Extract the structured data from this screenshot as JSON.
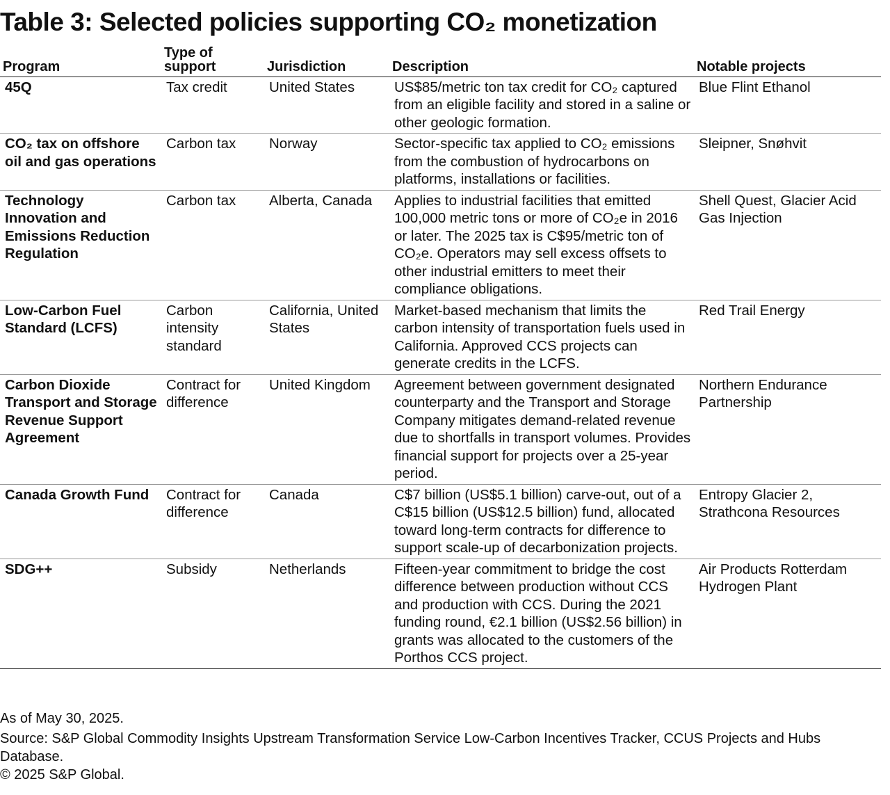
{
  "title": "Table 3: Selected policies supporting CO₂ monetization",
  "headers": {
    "program": "Program",
    "type": "Type of support",
    "jurisdiction": "Jurisdiction",
    "description": "Description",
    "projects": "Notable projects"
  },
  "rows": [
    {
      "program": "45Q",
      "type": "Tax credit",
      "jurisdiction": "United States",
      "description": "US$85/metric ton tax credit for CO₂ captured from an eligible facility and stored in a saline or other geologic formation.",
      "projects": "Blue Flint Ethanol"
    },
    {
      "program": "CO₂ tax on offshore oil and gas operations",
      "type": "Carbon tax",
      "jurisdiction": "Norway",
      "description": "Sector-specific tax applied to CO₂ emissions from the combustion of hydrocarbons on platforms, installations or facilities.",
      "projects": "Sleipner, Snøhvit"
    },
    {
      "program": "Technology Innovation and Emissions Reduction Regulation",
      "type": "Carbon tax",
      "jurisdiction": "Alberta, Canada",
      "description": "Applies to industrial facilities that emitted 100,000 metric tons or more of CO₂e in 2016 or later. The 2025 tax is C$95/metric ton of CO₂e. Operators may sell excess offsets to other industrial emitters to meet their compliance obligations.",
      "projects": "Shell Quest, Glacier Acid Gas Injection"
    },
    {
      "program": "Low-Carbon Fuel Standard (LCFS)",
      "type": "Carbon intensity standard",
      "jurisdiction": "California, United States",
      "description": "Market-based mechanism that limits the carbon intensity of transportation fuels used in California. Approved CCS projects can generate credits in the LCFS.",
      "projects": "Red Trail Energy"
    },
    {
      "program": "Carbon Dioxide Transport and Storage Revenue Support Agreement",
      "type": "Contract for difference",
      "jurisdiction": "United Kingdom",
      "description": "Agreement between government designated counterparty and the Transport and Storage Company mitigates demand-related revenue due to shortfalls in transport volumes. Provides financial support for projects over a 25-year period.",
      "projects": "Northern Endurance Partnership"
    },
    {
      "program": "Canada Growth Fund",
      "type": "Contract for difference",
      "jurisdiction": "Canada",
      "description": "C$7 billion (US$5.1 billion) carve-out, out of a C$15 billion (US$12.5 billion) fund, allocated toward long-term contracts for difference to support scale-up of decarbonization projects.",
      "projects": "Entropy Glacier 2, Strathcona Resources"
    },
    {
      "program": "SDG++",
      "type": "Subsidy",
      "jurisdiction": "Netherlands",
      "description": "Fifteen-year commitment to bridge the cost difference between production without CCS and production with CCS. During the 2021 funding round, €2.1 billion (US$2.56 billion) in grants was allocated to the customers of the Porthos CCS project.",
      "projects": "Air Products Rotterdam Hydrogen Plant"
    }
  ],
  "footer": {
    "asof": "As of May 30, 2025.",
    "source": "Source: S&P Global Commodity Insights Upstream Transformation Service Low-Carbon Incentives Tracker, CCUS Projects and Hubs Database.",
    "copyright": "© 2025 S&P Global."
  }
}
